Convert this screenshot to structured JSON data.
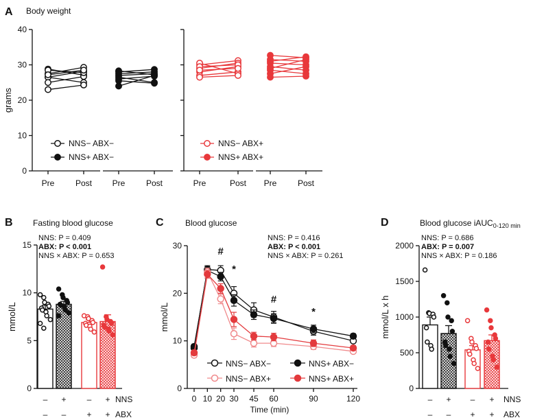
{
  "colors": {
    "black": "#111111",
    "red": "#e8383b",
    "red_dark": "#e33a3d",
    "red_light": "#f08a8c",
    "bar_red_fill": "#f7a3a5"
  },
  "chart_data": [
    {
      "panel": "A",
      "type": "line",
      "title": "Body weight",
      "ylabel": "grams",
      "ylim": [
        0,
        40
      ],
      "yticks": [
        0,
        10,
        20,
        30,
        40
      ],
      "groups": [
        {
          "name": "NNS− ABX−",
          "color": "black",
          "filled": false,
          "pre": [
            27.5,
            26.5,
            26.5,
            28.8,
            25.0,
            23.0,
            28.5,
            27.2
          ],
          "post": [
            29.3,
            28.2,
            25.0,
            27.1,
            26.7,
            24.3,
            27.8,
            28.5
          ]
        },
        {
          "name": "NNS+ ABX−",
          "color": "black",
          "filled": true,
          "pre": [
            28.0,
            27.0,
            26.5,
            24.0,
            27.5,
            25.5,
            28.3,
            26.0
          ],
          "post": [
            28.7,
            27.5,
            25.0,
            27.0,
            28.0,
            24.8,
            27.2,
            26.8
          ]
        },
        {
          "name": "NNS− ABX+",
          "color": "red",
          "filled": false,
          "pre": [
            30.0,
            29.0,
            28.0,
            27.0,
            30.5,
            29.5,
            26.5,
            28.5
          ],
          "post": [
            31.2,
            30.5,
            29.5,
            28.0,
            27.5,
            30.0,
            27.0,
            29.0
          ]
        },
        {
          "name": "NNS+ ABX+",
          "color": "red",
          "filled": true,
          "pre": [
            32.7,
            31.5,
            30.5,
            29.5,
            28.5,
            27.5,
            26.5,
            31.0,
            29.0
          ],
          "post": [
            32.0,
            31.0,
            30.0,
            28.5,
            27.5,
            29.5,
            26.8,
            32.3,
            31.5
          ]
        }
      ],
      "xtick_labels": [
        "Pre",
        "Post",
        "Pre",
        "Post",
        "Pre",
        "Post",
        "Pre",
        "Post"
      ],
      "legend": [
        "NNS− ABX−",
        "NNS+ ABX−",
        "NNS− ABX+",
        "NNS+ ABX+"
      ]
    },
    {
      "panel": "B",
      "type": "bar",
      "title": "Fasting blood glucose",
      "ylabel": "mmol/L",
      "ylim": [
        0,
        15
      ],
      "yticks": [
        0,
        5,
        10,
        15
      ],
      "stats": [
        "NNS: P = 0.409",
        "ABX: P < 0.001",
        "NNS × ABX: P = 0.653"
      ],
      "groups": [
        {
          "name": "NNS− ABX−",
          "mean": 8.3,
          "sem": 0.4,
          "points": [
            9.8,
            9.5,
            9.0,
            8.8,
            8.6,
            8.4,
            8.2,
            8.0,
            7.6,
            7.2,
            6.8,
            6.3
          ]
        },
        {
          "name": "NNS+ ABX−",
          "mean": 8.8,
          "sem": 0.3,
          "points": [
            10.4,
            9.8,
            9.5,
            9.2,
            9.0,
            8.8,
            8.7,
            8.5,
            8.2,
            7.9,
            7.6
          ]
        },
        {
          "name": "NNS− ABX+",
          "mean": 6.9,
          "sem": 0.3,
          "points": [
            7.6,
            7.5,
            7.3,
            7.1,
            6.9,
            6.8,
            6.6,
            6.5,
            6.2,
            5.9
          ]
        },
        {
          "name": "NNS+ ABX+",
          "mean": 7.0,
          "sem": 0.7,
          "points": [
            12.7,
            7.5,
            7.2,
            7.0,
            6.8,
            6.6,
            6.4,
            6.2,
            6.0,
            5.6
          ]
        }
      ],
      "row_labels": [
        "NNS",
        "ABX"
      ],
      "nns_row": [
        "–",
        "+",
        "–",
        "+"
      ],
      "abx_row": [
        "–",
        "–",
        "+",
        "+"
      ]
    },
    {
      "panel": "C",
      "type": "line",
      "title": "Blood glucose",
      "ylabel": "mmol/L",
      "xlabel": "Time (min)",
      "ylim": [
        0,
        30
      ],
      "yticks": [
        0,
        10,
        20,
        30
      ],
      "x": [
        0,
        10,
        20,
        30,
        45,
        60,
        90,
        120
      ],
      "stats": [
        "NNS: P = 0.416",
        "ABX: P < 0.001",
        "NNS × ABX: P = 0.261"
      ],
      "annotations": [
        {
          "x": 20,
          "label": "#"
        },
        {
          "x": 30,
          "label": "*"
        },
        {
          "x": 60,
          "label": "#"
        },
        {
          "x": 90,
          "label": "*"
        }
      ],
      "series": [
        {
          "name": "NNS− ABX−",
          "color": "black",
          "filled": false,
          "values": [
            8.5,
            25.0,
            24.8,
            20.0,
            16.5,
            15.0,
            12.0,
            10.0
          ],
          "sem": [
            0.5,
            0.8,
            1.0,
            1.4,
            1.5,
            1.2,
            0.8,
            0.4
          ]
        },
        {
          "name": "NNS+ ABX−",
          "color": "black",
          "filled": true,
          "values": [
            8.8,
            24.8,
            23.5,
            18.5,
            15.5,
            14.7,
            12.5,
            11.0
          ],
          "sem": [
            0.5,
            0.8,
            0.9,
            1.2,
            1.0,
            1.0,
            0.8,
            0.5
          ]
        },
        {
          "name": "NNS− ABX+",
          "color": "red_light",
          "filled": false,
          "values": [
            7.0,
            24.5,
            18.8,
            11.5,
            9.5,
            9.5,
            8.8,
            7.8
          ],
          "sem": [
            0.5,
            0.8,
            1.0,
            1.2,
            0.8,
            0.7,
            0.6,
            0.4
          ]
        },
        {
          "name": "NNS+ ABX+",
          "color": "red_dark",
          "filled": true,
          "values": [
            7.5,
            24.0,
            21.0,
            14.5,
            11.0,
            10.8,
            9.5,
            8.5
          ],
          "sem": [
            0.5,
            0.8,
            1.0,
            1.5,
            0.8,
            0.8,
            0.7,
            0.5
          ]
        }
      ],
      "legend": [
        "NNS− ABX−",
        "NNS+ ABX−",
        "NNS− ABX+",
        "NNS+ ABX+"
      ]
    },
    {
      "panel": "D",
      "type": "bar",
      "title": "Blood glucose iAUC",
      "title_subscript": "0-120 min",
      "ylabel": "mmol/L x h",
      "ylim": [
        0,
        2000
      ],
      "yticks": [
        0,
        500,
        1000,
        1500,
        2000
      ],
      "stats": [
        "NNS: P = 0.686",
        "ABX: P = 0.007",
        "NNS × ABX: P = 0.186"
      ],
      "groups": [
        {
          "name": "NNS− ABX−",
          "mean": 890,
          "sem": 110,
          "points": [
            1660,
            1060,
            1050,
            1040,
            1000,
            850,
            650,
            600,
            550
          ]
        },
        {
          "name": "NNS+ ABX−",
          "mean": 770,
          "sem": 110,
          "points": [
            1300,
            1200,
            1000,
            950,
            800,
            650,
            600,
            550,
            450,
            350
          ]
        },
        {
          "name": "NNS− ABX+",
          "mean": 540,
          "sem": 60,
          "points": [
            950,
            700,
            650,
            600,
            560,
            520,
            480,
            400,
            350,
            280
          ]
        },
        {
          "name": "NNS+ ABX+",
          "mean": 670,
          "sem": 80,
          "points": [
            1100,
            950,
            850,
            750,
            700,
            650,
            550,
            450,
            400,
            300
          ]
        }
      ],
      "row_labels": [
        "NNS",
        "ABX"
      ],
      "nns_row": [
        "–",
        "+",
        "–",
        "+"
      ],
      "abx_row": [
        "–",
        "–",
        "+",
        "+"
      ]
    }
  ],
  "panel_letters": [
    "A",
    "B",
    "C",
    "D"
  ]
}
